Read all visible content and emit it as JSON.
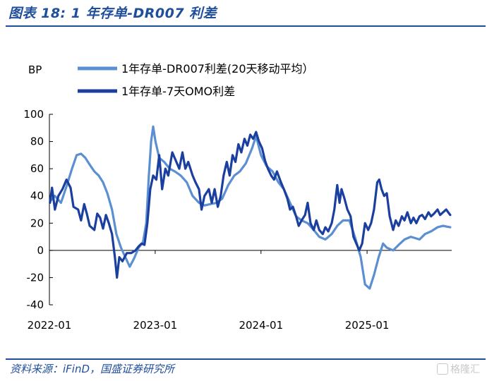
{
  "header": {
    "title": "图表 18:  1 年存单-DR007 利差"
  },
  "footer": {
    "source": "资料来源：iFinD，国盛证券研究所",
    "watermark": "格隆汇"
  },
  "chart_data": {
    "type": "line",
    "unit_label": "BP",
    "ylim": [
      -40,
      100
    ],
    "yticks": [
      -40,
      -20,
      0,
      20,
      40,
      60,
      80,
      100
    ],
    "xlim": [
      "2022-01-01",
      "2025-10-20"
    ],
    "xticks": [
      "2022-01",
      "2023-01",
      "2024-01",
      "2025-01"
    ],
    "grid": false,
    "legend_position": "top",
    "series": [
      {
        "name": "1年存单-DR007利差(20天移动平均）",
        "color": "#5b8fd1",
        "points": [
          [
            "2022-01-03",
            36
          ],
          [
            "2022-01-20",
            40
          ],
          [
            "2022-02-10",
            35
          ],
          [
            "2022-03-01",
            47
          ],
          [
            "2022-03-20",
            60
          ],
          [
            "2022-04-05",
            70
          ],
          [
            "2022-04-20",
            71
          ],
          [
            "2022-05-05",
            68
          ],
          [
            "2022-05-20",
            63
          ],
          [
            "2022-06-05",
            58
          ],
          [
            "2022-06-20",
            55
          ],
          [
            "2022-07-05",
            50
          ],
          [
            "2022-07-20",
            42
          ],
          [
            "2022-08-05",
            30
          ],
          [
            "2022-08-20",
            12
          ],
          [
            "2022-09-05",
            2
          ],
          [
            "2022-09-20",
            -5
          ],
          [
            "2022-10-05",
            -12
          ],
          [
            "2022-10-20",
            -6
          ],
          [
            "2022-11-05",
            2
          ],
          [
            "2022-11-20",
            6
          ],
          [
            "2022-12-01",
            20
          ],
          [
            "2022-12-10",
            55
          ],
          [
            "2022-12-18",
            80
          ],
          [
            "2022-12-25",
            91
          ],
          [
            "2023-01-02",
            80
          ],
          [
            "2023-01-15",
            68
          ],
          [
            "2023-02-01",
            65
          ],
          [
            "2023-02-20",
            60
          ],
          [
            "2023-03-10",
            58
          ],
          [
            "2023-03-30",
            55
          ],
          [
            "2023-04-20",
            50
          ],
          [
            "2023-05-10",
            40
          ],
          [
            "2023-06-01",
            35
          ],
          [
            "2023-06-20",
            33
          ],
          [
            "2023-07-10",
            34
          ],
          [
            "2023-08-01",
            35
          ],
          [
            "2023-08-20",
            38
          ],
          [
            "2023-09-10",
            48
          ],
          [
            "2023-10-01",
            55
          ],
          [
            "2023-10-20",
            58
          ],
          [
            "2023-11-10",
            64
          ],
          [
            "2023-12-01",
            75
          ],
          [
            "2023-12-15",
            84
          ],
          [
            "2024-01-01",
            70
          ],
          [
            "2024-01-20",
            62
          ],
          [
            "2024-02-10",
            58
          ],
          [
            "2024-03-01",
            50
          ],
          [
            "2024-03-20",
            45
          ],
          [
            "2024-04-10",
            35
          ],
          [
            "2024-05-01",
            25
          ],
          [
            "2024-05-20",
            22
          ],
          [
            "2024-06-10",
            20
          ],
          [
            "2024-07-01",
            15
          ],
          [
            "2024-07-20",
            10
          ],
          [
            "2024-08-10",
            8
          ],
          [
            "2024-09-01",
            12
          ],
          [
            "2024-09-20",
            18
          ],
          [
            "2024-10-10",
            22
          ],
          [
            "2024-11-01",
            22
          ],
          [
            "2024-11-20",
            10
          ],
          [
            "2024-12-10",
            -5
          ],
          [
            "2024-12-25",
            -25
          ],
          [
            "2025-01-10",
            -28
          ],
          [
            "2025-01-25",
            -18
          ],
          [
            "2025-02-10",
            -5
          ],
          [
            "2025-02-25",
            5
          ],
          [
            "2025-03-10",
            2
          ],
          [
            "2025-04-01",
            0
          ],
          [
            "2025-04-20",
            4
          ],
          [
            "2025-05-10",
            8
          ],
          [
            "2025-06-01",
            10
          ],
          [
            "2025-07-01",
            8
          ],
          [
            "2025-07-20",
            12
          ],
          [
            "2025-08-10",
            14
          ],
          [
            "2025-09-01",
            17
          ],
          [
            "2025-09-20",
            18
          ],
          [
            "2025-10-15",
            17
          ]
        ]
      },
      {
        "name": "1年存单-7天OMO利差",
        "color": "#1a3f9e",
        "points": [
          [
            "2022-01-03",
            35
          ],
          [
            "2022-01-10",
            46
          ],
          [
            "2022-01-20",
            30
          ],
          [
            "2022-02-01",
            40
          ],
          [
            "2022-02-15",
            45
          ],
          [
            "2022-03-01",
            52
          ],
          [
            "2022-03-15",
            46
          ],
          [
            "2022-03-25",
            32
          ],
          [
            "2022-04-10",
            30
          ],
          [
            "2022-04-20",
            22
          ],
          [
            "2022-05-01",
            34
          ],
          [
            "2022-05-10",
            27
          ],
          [
            "2022-05-20",
            18
          ],
          [
            "2022-06-05",
            15
          ],
          [
            "2022-06-15",
            27
          ],
          [
            "2022-06-25",
            24
          ],
          [
            "2022-07-05",
            16
          ],
          [
            "2022-07-15",
            26
          ],
          [
            "2022-07-25",
            20
          ],
          [
            "2022-08-05",
            12
          ],
          [
            "2022-08-15",
            -5
          ],
          [
            "2022-08-22",
            -20
          ],
          [
            "2022-08-30",
            -5
          ],
          [
            "2022-09-10",
            -8
          ],
          [
            "2022-09-25",
            -2
          ],
          [
            "2022-10-10",
            -2
          ],
          [
            "2022-10-25",
            0
          ],
          [
            "2022-11-05",
            3
          ],
          [
            "2022-11-15",
            5
          ],
          [
            "2022-11-25",
            4
          ],
          [
            "2022-12-05",
            20
          ],
          [
            "2022-12-15",
            45
          ],
          [
            "2022-12-25",
            55
          ],
          [
            "2023-01-05",
            52
          ],
          [
            "2023-01-15",
            70
          ],
          [
            "2023-01-25",
            45
          ],
          [
            "2023-02-05",
            60
          ],
          [
            "2023-02-15",
            55
          ],
          [
            "2023-03-01",
            72
          ],
          [
            "2023-03-15",
            65
          ],
          [
            "2023-03-25",
            60
          ],
          [
            "2023-04-05",
            72
          ],
          [
            "2023-04-15",
            60
          ],
          [
            "2023-04-25",
            65
          ],
          [
            "2023-05-10",
            55
          ],
          [
            "2023-05-20",
            50
          ],
          [
            "2023-06-01",
            45
          ],
          [
            "2023-06-10",
            30
          ],
          [
            "2023-06-20",
            40
          ],
          [
            "2023-07-05",
            45
          ],
          [
            "2023-07-15",
            35
          ],
          [
            "2023-07-25",
            45
          ],
          [
            "2023-08-05",
            32
          ],
          [
            "2023-08-15",
            40
          ],
          [
            "2023-08-25",
            55
          ],
          [
            "2023-09-05",
            65
          ],
          [
            "2023-09-15",
            55
          ],
          [
            "2023-09-25",
            70
          ],
          [
            "2023-10-05",
            65
          ],
          [
            "2023-10-15",
            78
          ],
          [
            "2023-10-25",
            72
          ],
          [
            "2023-11-05",
            82
          ],
          [
            "2023-11-15",
            77
          ],
          [
            "2023-11-25",
            85
          ],
          [
            "2023-12-05",
            82
          ],
          [
            "2023-12-15",
            87
          ],
          [
            "2023-12-25",
            80
          ],
          [
            "2024-01-05",
            75
          ],
          [
            "2024-01-15",
            66
          ],
          [
            "2024-01-25",
            60
          ],
          [
            "2024-02-05",
            55
          ],
          [
            "2024-02-15",
            52
          ],
          [
            "2024-02-25",
            58
          ],
          [
            "2024-03-10",
            50
          ],
          [
            "2024-03-20",
            45
          ],
          [
            "2024-04-01",
            38
          ],
          [
            "2024-04-10",
            30
          ],
          [
            "2024-04-20",
            32
          ],
          [
            "2024-05-01",
            25
          ],
          [
            "2024-05-10",
            18
          ],
          [
            "2024-05-20",
            22
          ],
          [
            "2024-06-01",
            26
          ],
          [
            "2024-06-10",
            35
          ],
          [
            "2024-06-20",
            20
          ],
          [
            "2024-07-01",
            15
          ],
          [
            "2024-07-10",
            22
          ],
          [
            "2024-07-20",
            15
          ],
          [
            "2024-08-01",
            12
          ],
          [
            "2024-08-10",
            17
          ],
          [
            "2024-08-20",
            14
          ],
          [
            "2024-09-01",
            20
          ],
          [
            "2024-09-10",
            30
          ],
          [
            "2024-09-20",
            48
          ],
          [
            "2024-09-28",
            35
          ],
          [
            "2024-10-05",
            45
          ],
          [
            "2024-10-15",
            38
          ],
          [
            "2024-10-25",
            30
          ],
          [
            "2024-11-05",
            25
          ],
          [
            "2024-11-15",
            10
          ],
          [
            "2024-11-25",
            5
          ],
          [
            "2024-12-05",
            0
          ],
          [
            "2024-12-15",
            5
          ],
          [
            "2024-12-25",
            20
          ],
          [
            "2025-01-05",
            15
          ],
          [
            "2025-01-15",
            20
          ],
          [
            "2025-01-25",
            30
          ],
          [
            "2025-02-05",
            50
          ],
          [
            "2025-02-12",
            52
          ],
          [
            "2025-02-20",
            45
          ],
          [
            "2025-03-01",
            40
          ],
          [
            "2025-03-10",
            42
          ],
          [
            "2025-03-20",
            25
          ],
          [
            "2025-04-01",
            15
          ],
          [
            "2025-04-10",
            22
          ],
          [
            "2025-04-20",
            18
          ],
          [
            "2025-05-01",
            25
          ],
          [
            "2025-05-10",
            22
          ],
          [
            "2025-05-20",
            28
          ],
          [
            "2025-06-01",
            20
          ],
          [
            "2025-06-10",
            24
          ],
          [
            "2025-06-20",
            20
          ],
          [
            "2025-07-01",
            25
          ],
          [
            "2025-07-10",
            26
          ],
          [
            "2025-07-20",
            23
          ],
          [
            "2025-08-01",
            28
          ],
          [
            "2025-08-10",
            25
          ],
          [
            "2025-08-20",
            27
          ],
          [
            "2025-09-01",
            30
          ],
          [
            "2025-09-10",
            26
          ],
          [
            "2025-09-20",
            28
          ],
          [
            "2025-10-01",
            30
          ],
          [
            "2025-10-15",
            26
          ]
        ]
      }
    ]
  }
}
